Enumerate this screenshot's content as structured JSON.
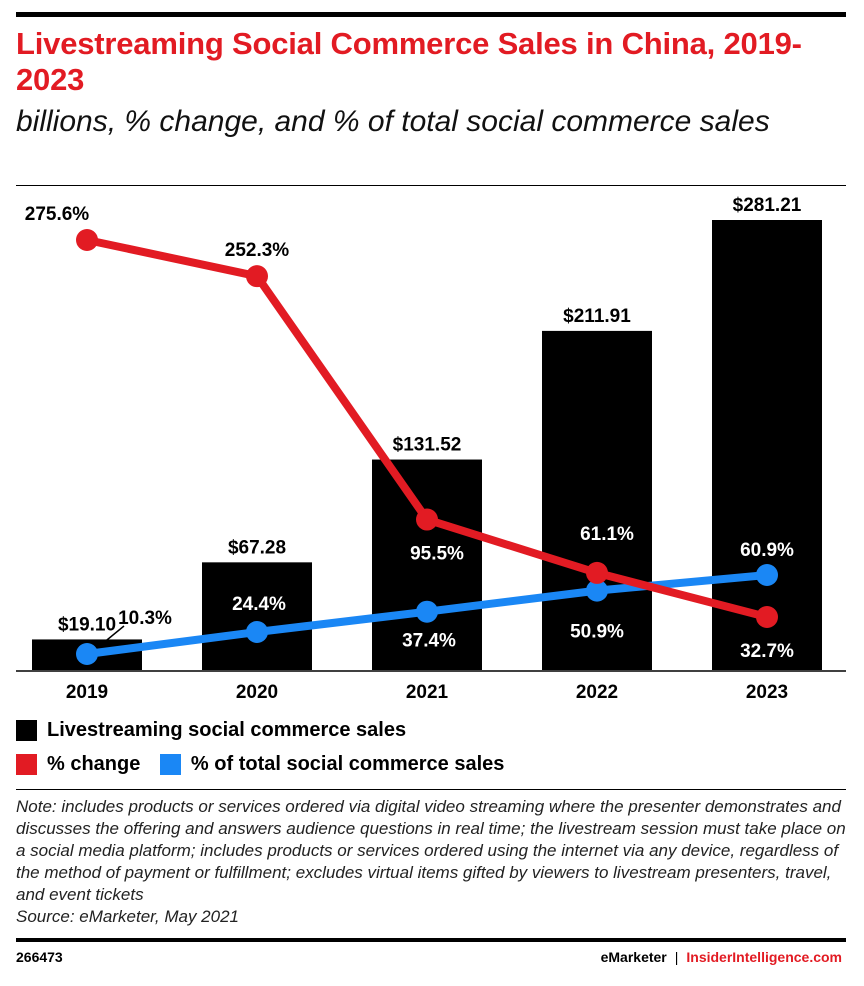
{
  "chart_data": {
    "type": "bar",
    "title": "Livestreaming Social Commerce Sales in China, 2019-2023",
    "subtitle": "billions, % change, and % of total social commerce sales",
    "categories": [
      "2019",
      "2020",
      "2021",
      "2022",
      "2023"
    ],
    "series": [
      {
        "name": "Livestreaming social commerce sales",
        "type": "bar",
        "values": [
          19.1,
          67.28,
          131.52,
          211.91,
          281.21
        ],
        "labels": [
          "$19.10",
          "$67.28",
          "$131.52",
          "$211.91",
          "$281.21"
        ],
        "color": "#000000"
      },
      {
        "name": "% change",
        "type": "line",
        "values": [
          275.6,
          252.3,
          95.5,
          61.1,
          32.7
        ],
        "labels": [
          "275.6%",
          "252.3%",
          "95.5%",
          "61.1%",
          "32.7%"
        ],
        "color": "#e21b23"
      },
      {
        "name": "% of total social commerce sales",
        "type": "line",
        "values": [
          10.3,
          24.4,
          37.4,
          50.9,
          60.9
        ],
        "labels": [
          "10.3%",
          "24.4%",
          "37.4%",
          "50.9%",
          "60.9%"
        ],
        "color": "#1a87f5"
      }
    ],
    "grid": false,
    "legend": "bottom"
  },
  "note": "Note: includes products or services ordered via digital video streaming where the presenter demonstrates and discusses the offering and answers audience questions in real time; the livestream session must take place on a social media platform; includes products or services ordered using the internet via any device, regardless of the method of payment or fulfillment; excludes virtual items gifted by viewers to livestream presenters, travel, and event tickets",
  "source": "Source: eMarketer, May 2021",
  "chart_id": "266473",
  "brand": {
    "emarketer": "eMarketer",
    "separator": "|",
    "insider": "InsiderIntelligence.com"
  }
}
